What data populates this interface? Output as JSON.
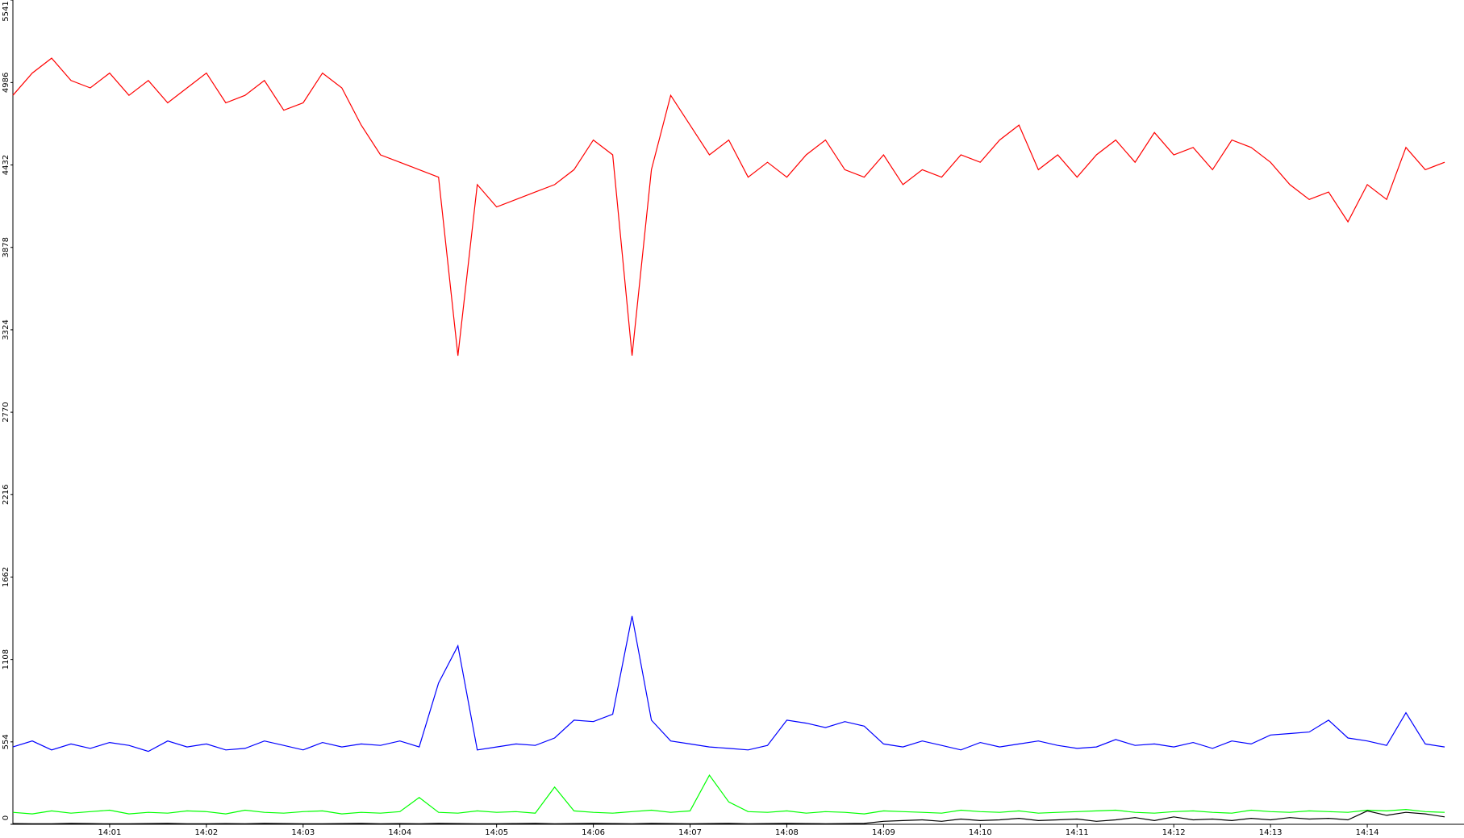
{
  "chart_data": {
    "type": "line",
    "x": [
      840,
      840.2,
      840.4,
      840.6,
      840.8,
      841,
      841.2,
      841.4,
      841.6,
      841.8,
      842,
      842.2,
      842.4,
      842.6,
      842.8,
      843,
      843.2,
      843.4,
      843.6,
      843.8,
      844,
      844.2,
      844.4,
      844.6,
      844.8,
      845,
      845.2,
      845.4,
      845.6,
      845.8,
      846,
      846.2,
      846.4,
      846.6,
      846.8,
      847,
      847.2,
      847.4,
      847.6,
      847.8,
      848,
      848.2,
      848.4,
      848.6,
      848.8,
      849,
      849.2,
      849.4,
      849.6,
      849.8,
      850,
      850.2,
      850.4,
      850.6,
      850.8,
      851,
      851.2,
      851.4,
      851.6,
      851.8,
      852,
      852.2,
      852.4,
      852.6,
      852.8,
      853,
      853.2,
      853.4,
      853.6,
      853.8,
      854,
      854.2,
      854.4,
      854.6,
      854.8
    ],
    "series": [
      {
        "color": "#ff0000",
        "values": [
          4900,
          5050,
          5150,
          5000,
          4950,
          5050,
          4900,
          5000,
          4850,
          4950,
          5050,
          4850,
          4900,
          5000,
          4800,
          4850,
          5050,
          4950,
          4700,
          4500,
          4450,
          4400,
          4350,
          3150,
          4300,
          4150,
          4200,
          4250,
          4300,
          4400,
          4600,
          4500,
          3150,
          4400,
          4900,
          4700,
          4500,
          4600,
          4350,
          4450,
          4350,
          4500,
          4600,
          4400,
          4350,
          4500,
          4300,
          4400,
          4350,
          4500,
          4450,
          4600,
          4700,
          4400,
          4500,
          4350,
          4500,
          4600,
          4450,
          4650,
          4500,
          4550,
          4400,
          4600,
          4550,
          4450,
          4300,
          4200,
          4250,
          4050,
          4300,
          4200,
          4550,
          4400,
          4450
        ]
      },
      {
        "color": "#0000ff",
        "values": [
          520,
          560,
          500,
          540,
          510,
          550,
          530,
          490,
          560,
          520,
          540,
          500,
          510,
          560,
          530,
          500,
          550,
          520,
          540,
          530,
          560,
          520,
          950,
          1200,
          500,
          520,
          540,
          530,
          580,
          700,
          690,
          740,
          1400,
          700,
          560,
          540,
          520,
          510,
          500,
          530,
          700,
          680,
          650,
          690,
          660,
          540,
          520,
          560,
          530,
          500,
          550,
          520,
          540,
          560,
          530,
          510,
          520,
          570,
          530,
          540,
          520,
          550,
          510,
          560,
          540,
          600,
          610,
          620,
          700,
          580,
          560,
          530,
          750,
          540,
          520
        ]
      },
      {
        "color": "#00ff00",
        "values": [
          80,
          70,
          90,
          75,
          85,
          95,
          70,
          80,
          75,
          90,
          85,
          70,
          95,
          80,
          75,
          85,
          90,
          70,
          80,
          75,
          85,
          180,
          80,
          75,
          90,
          80,
          85,
          75,
          250,
          90,
          80,
          75,
          85,
          95,
          80,
          90,
          330,
          150,
          85,
          80,
          90,
          75,
          85,
          80,
          70,
          90,
          85,
          80,
          75,
          95,
          85,
          80,
          90,
          75,
          80,
          85,
          90,
          95,
          80,
          75,
          85,
          90,
          80,
          75,
          95,
          85,
          80,
          90,
          85,
          80,
          95,
          90,
          100,
          85,
          80
        ]
      },
      {
        "color": "#000000",
        "values": [
          5,
          3,
          4,
          6,
          5,
          3,
          4,
          5,
          6,
          4,
          3,
          5,
          4,
          6,
          5,
          4,
          3,
          5,
          6,
          4,
          5,
          4,
          6,
          5,
          4,
          3,
          5,
          6,
          4,
          5,
          6,
          5,
          4,
          6,
          5,
          4,
          5,
          6,
          4,
          5,
          6,
          5,
          4,
          5,
          6,
          20,
          25,
          30,
          20,
          35,
          25,
          30,
          40,
          25,
          30,
          35,
          20,
          30,
          45,
          25,
          50,
          30,
          35,
          25,
          40,
          30,
          45,
          35,
          40,
          30,
          90,
          60,
          80,
          70,
          50
        ]
      }
    ],
    "xlim": [
      840,
      855
    ],
    "xticks": [
      {
        "value": 841,
        "label": "14:01"
      },
      {
        "value": 842,
        "label": "14:02"
      },
      {
        "value": 843,
        "label": "14:03"
      },
      {
        "value": 844,
        "label": "14:04"
      },
      {
        "value": 845,
        "label": "14:05"
      },
      {
        "value": 846,
        "label": "14:06"
      },
      {
        "value": 847,
        "label": "14:07"
      },
      {
        "value": 848,
        "label": "14:08"
      },
      {
        "value": 849,
        "label": "14:09"
      },
      {
        "value": 850,
        "label": "14:10"
      },
      {
        "value": 851,
        "label": "14:11"
      },
      {
        "value": 852,
        "label": "14:12"
      },
      {
        "value": 853,
        "label": "14:13"
      },
      {
        "value": 854,
        "label": "14:14"
      }
    ],
    "ylim": [
      0,
      5541
    ],
    "yticks": [
      0,
      554,
      1108,
      1662,
      2216,
      2770,
      3324,
      3878,
      4432,
      4986,
      5541
    ]
  }
}
